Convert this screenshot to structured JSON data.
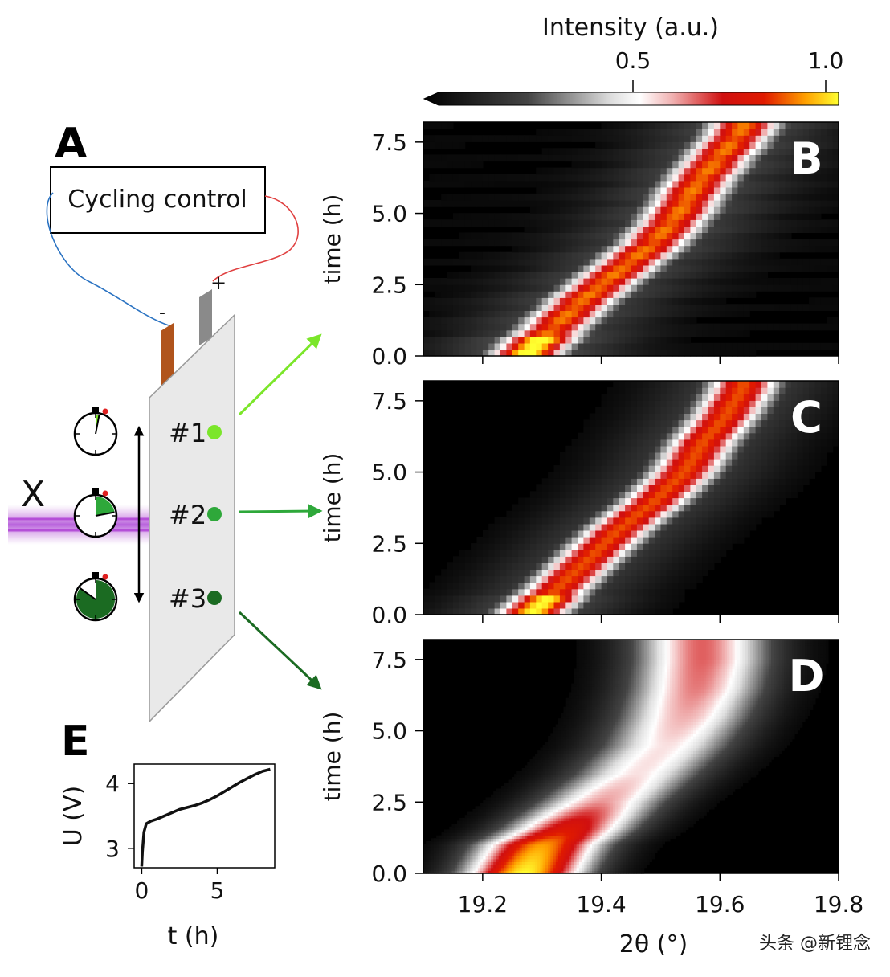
{
  "colorbar": {
    "title": "Intensity (a.u.)",
    "ticks": [
      0.5,
      1.0
    ],
    "tick_labels": [
      "0.5",
      "1.0"
    ],
    "range": [
      0,
      1
    ]
  },
  "schematic": {
    "panel_label": "A",
    "control_box_label": "Cycling control",
    "minus_label": "-",
    "plus_label": "+",
    "xray_label": "X",
    "points": [
      {
        "label": "#1",
        "color": "#7be62a",
        "timer_fill": 0.03
      },
      {
        "label": "#2",
        "color": "#2ea83a",
        "timer_fill": 0.22
      },
      {
        "label": "#3",
        "color": "#1b6b22",
        "timer_fill": 0.85
      }
    ]
  },
  "watermark": "头条 @新锂念",
  "chart_data": [
    {
      "type": "heatmap",
      "panel": "B",
      "xlabel": "",
      "ylabel": "time (h)",
      "xlim": [
        19.1,
        19.8
      ],
      "ylim": [
        0,
        8.2
      ],
      "yticks": [
        0.0,
        2.5,
        5.0,
        7.5
      ],
      "ytick_labels": [
        "0.0",
        "2.5",
        "5.0",
        "7.5"
      ],
      "xticks": [
        19.2,
        19.4,
        19.6,
        19.8
      ],
      "style": "pixelated",
      "peak_position": {
        "time_h": [
          0.0,
          1.0,
          2.0,
          3.0,
          4.0,
          5.0,
          6.0,
          7.0,
          8.0
        ],
        "two_theta": [
          19.27,
          19.32,
          19.37,
          19.43,
          19.49,
          19.53,
          19.56,
          19.6,
          19.64
        ]
      }
    },
    {
      "type": "heatmap",
      "panel": "C",
      "xlabel": "",
      "ylabel": "time (h)",
      "xlim": [
        19.1,
        19.8
      ],
      "ylim": [
        0,
        8.2
      ],
      "yticks": [
        0.0,
        2.5,
        5.0,
        7.5
      ],
      "ytick_labels": [
        "0.0",
        "2.5",
        "5.0",
        "7.5"
      ],
      "xticks": [
        19.2,
        19.4,
        19.6,
        19.8
      ],
      "style": "pixelated",
      "peak_position": {
        "time_h": [
          0.0,
          1.0,
          2.0,
          3.0,
          4.0,
          5.0,
          6.0,
          7.0,
          8.0
        ],
        "two_theta": [
          19.28,
          19.33,
          19.38,
          19.43,
          19.49,
          19.54,
          19.57,
          19.61,
          19.64
        ]
      }
    },
    {
      "type": "heatmap",
      "panel": "D",
      "xlabel": "2θ (°)",
      "ylabel": "time (h)",
      "xlim": [
        19.1,
        19.8
      ],
      "ylim": [
        0,
        8.2
      ],
      "yticks": [
        0.0,
        2.5,
        5.0,
        7.5
      ],
      "ytick_labels": [
        "0.0",
        "2.5",
        "5.0",
        "7.5"
      ],
      "xticks": [
        19.2,
        19.4,
        19.6,
        19.8
      ],
      "xtick_labels": [
        "19.2",
        "19.4",
        "19.6",
        "19.8"
      ],
      "style": "smooth",
      "peak_position": {
        "time_h": [
          0.0,
          1.0,
          1.5,
          2.5,
          3.5,
          4.5,
          5.5,
          6.5,
          7.5,
          8.2
        ],
        "two_theta": [
          19.27,
          19.3,
          19.34,
          19.4,
          19.46,
          19.51,
          19.54,
          19.56,
          19.57,
          19.57
        ]
      },
      "peak_intensity": [
        1.0,
        0.92,
        0.8,
        0.62,
        0.55,
        0.55,
        0.6,
        0.64,
        0.66,
        0.66
      ]
    },
    {
      "type": "line",
      "panel": "E",
      "xlabel": "t (h)",
      "ylabel": "U (V)",
      "xlim": [
        -0.5,
        8.8
      ],
      "ylim": [
        2.7,
        4.3
      ],
      "xticks": [
        0,
        5
      ],
      "xtick_labels": [
        "0",
        "5"
      ],
      "yticks": [
        3,
        4
      ],
      "ytick_labels": [
        "3",
        "4"
      ],
      "x": [
        0.0,
        0.05,
        0.15,
        0.3,
        0.6,
        1.0,
        1.5,
        2.0,
        2.5,
        3.0,
        3.5,
        4.0,
        4.5,
        5.0,
        5.5,
        6.0,
        6.5,
        7.0,
        7.5,
        8.0,
        8.5
      ],
      "y": [
        2.72,
        2.95,
        3.25,
        3.38,
        3.42,
        3.45,
        3.5,
        3.55,
        3.6,
        3.63,
        3.66,
        3.7,
        3.75,
        3.81,
        3.88,
        3.95,
        4.02,
        4.08,
        4.14,
        4.19,
        4.22
      ]
    }
  ]
}
